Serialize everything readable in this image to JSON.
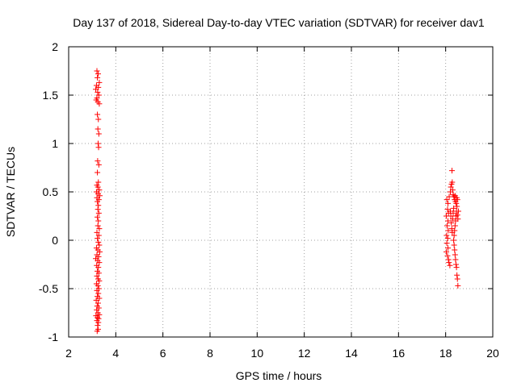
{
  "chart_data": {
    "type": "scatter",
    "title": "Day 137 of 2018, Sidereal Day-to-day VTEC variation (SDTVAR) for receiver dav1",
    "xlabel": "GPS time / hours",
    "ylabel": "SDTVAR / TECUs",
    "xlim": [
      2,
      20
    ],
    "ylim": [
      -1,
      2
    ],
    "xticks": [
      2,
      4,
      6,
      8,
      10,
      12,
      14,
      16,
      18,
      20
    ],
    "yticks": [
      -1,
      -0.5,
      0,
      0.5,
      1,
      1.5,
      2
    ],
    "ytick_labels": [
      "-1",
      "-0.5",
      "0",
      "0.5",
      "1",
      "1.5",
      "2"
    ],
    "grid": true,
    "marker": "+",
    "color": "#ff0000",
    "series": [
      {
        "name": "dav1",
        "points": [
          [
            3.2,
            1.75
          ],
          [
            3.25,
            1.72
          ],
          [
            3.22,
            1.68
          ],
          [
            3.3,
            1.63
          ],
          [
            3.18,
            1.6
          ],
          [
            3.26,
            1.58
          ],
          [
            3.15,
            1.56
          ],
          [
            3.23,
            1.53
          ],
          [
            3.28,
            1.5
          ],
          [
            3.2,
            1.47
          ],
          [
            3.17,
            1.45
          ],
          [
            3.24,
            1.43
          ],
          [
            3.3,
            1.41
          ],
          [
            3.22,
            1.3
          ],
          [
            3.26,
            1.25
          ],
          [
            3.24,
            1.15
          ],
          [
            3.28,
            1.1
          ],
          [
            3.25,
            1.0
          ],
          [
            3.27,
            0.96
          ],
          [
            3.23,
            0.82
          ],
          [
            3.28,
            0.78
          ],
          [
            3.22,
            0.7
          ],
          [
            3.26,
            0.6
          ],
          [
            3.2,
            0.57
          ],
          [
            3.24,
            0.55
          ],
          [
            3.3,
            0.52
          ],
          [
            3.18,
            0.5
          ],
          [
            3.25,
            0.48
          ],
          [
            3.32,
            0.46
          ],
          [
            3.2,
            0.44
          ],
          [
            3.28,
            0.42
          ],
          [
            3.22,
            0.4
          ],
          [
            3.26,
            0.36
          ],
          [
            3.24,
            0.32
          ],
          [
            3.28,
            0.28
          ],
          [
            3.22,
            0.24
          ],
          [
            3.26,
            0.2
          ],
          [
            3.24,
            0.15
          ],
          [
            3.3,
            0.12
          ],
          [
            3.2,
            0.08
          ],
          [
            3.28,
            0.05
          ],
          [
            3.22,
            0.02
          ],
          [
            3.26,
            -0.02
          ],
          [
            3.3,
            -0.05
          ],
          [
            3.18,
            -0.08
          ],
          [
            3.24,
            -0.1
          ],
          [
            3.32,
            -0.12
          ],
          [
            3.2,
            -0.15
          ],
          [
            3.27,
            -0.17
          ],
          [
            3.15,
            -0.19
          ],
          [
            3.23,
            -0.21
          ],
          [
            3.3,
            -0.23
          ],
          [
            3.19,
            -0.26
          ],
          [
            3.26,
            -0.28
          ],
          [
            3.22,
            -0.32
          ],
          [
            3.28,
            -0.34
          ],
          [
            3.2,
            -0.37
          ],
          [
            3.25,
            -0.4
          ],
          [
            3.3,
            -0.42
          ],
          [
            3.18,
            -0.45
          ],
          [
            3.24,
            -0.47
          ],
          [
            3.28,
            -0.5
          ],
          [
            3.2,
            -0.52
          ],
          [
            3.26,
            -0.55
          ],
          [
            3.22,
            -0.58
          ],
          [
            3.3,
            -0.6
          ],
          [
            3.17,
            -0.62
          ],
          [
            3.25,
            -0.65
          ],
          [
            3.21,
            -0.68
          ],
          [
            3.28,
            -0.7
          ],
          [
            3.19,
            -0.72
          ],
          [
            3.24,
            -0.75
          ],
          [
            3.3,
            -0.77
          ],
          [
            3.16,
            -0.78
          ],
          [
            3.22,
            -0.8
          ],
          [
            3.27,
            -0.81
          ],
          [
            3.2,
            -0.83
          ],
          [
            3.26,
            -0.85
          ],
          [
            3.23,
            -0.88
          ],
          [
            3.25,
            -0.92
          ],
          [
            3.21,
            -0.94
          ],
          [
            18.05,
            0.42
          ],
          [
            18.1,
            0.38
          ],
          [
            18.08,
            0.32
          ],
          [
            18.12,
            0.28
          ],
          [
            18.03,
            0.25
          ],
          [
            18.1,
            0.2
          ],
          [
            18.06,
            0.15
          ],
          [
            18.11,
            0.1
          ],
          [
            18.04,
            0.05
          ],
          [
            18.09,
            0.02
          ],
          [
            18.05,
            -0.03
          ],
          [
            18.1,
            -0.08
          ],
          [
            18.03,
            -0.12
          ],
          [
            18.08,
            -0.16
          ],
          [
            18.12,
            -0.2
          ],
          [
            18.14,
            -0.23
          ],
          [
            18.18,
            -0.26
          ],
          [
            18.15,
            0.45
          ],
          [
            18.2,
            0.5
          ],
          [
            18.22,
            0.55
          ],
          [
            18.25,
            0.58
          ],
          [
            18.28,
            0.6
          ],
          [
            18.27,
            0.72
          ],
          [
            18.3,
            0.52
          ],
          [
            18.32,
            0.47
          ],
          [
            18.35,
            0.45
          ],
          [
            18.38,
            0.42
          ],
          [
            18.4,
            0.46
          ],
          [
            18.42,
            0.4
          ],
          [
            18.45,
            0.38
          ],
          [
            18.48,
            0.35
          ],
          [
            18.46,
            0.3
          ],
          [
            18.44,
            0.25
          ],
          [
            18.42,
            0.2
          ],
          [
            18.4,
            0.15
          ],
          [
            18.38,
            0.1
          ],
          [
            18.36,
            0.05
          ],
          [
            18.34,
            0.0
          ],
          [
            18.36,
            -0.05
          ],
          [
            18.38,
            -0.1
          ],
          [
            18.4,
            -0.15
          ],
          [
            18.42,
            -0.2
          ],
          [
            18.44,
            -0.25
          ],
          [
            18.46,
            -0.28
          ],
          [
            18.48,
            -0.36
          ],
          [
            18.5,
            -0.4
          ],
          [
            18.52,
            -0.47
          ],
          [
            18.2,
            0.3
          ],
          [
            18.22,
            0.25
          ],
          [
            18.24,
            0.18
          ],
          [
            18.26,
            0.12
          ],
          [
            18.28,
            0.08
          ],
          [
            18.3,
            0.22
          ],
          [
            18.32,
            0.28
          ],
          [
            18.34,
            0.33
          ],
          [
            18.5,
            0.26
          ],
          [
            18.52,
            0.22
          ],
          [
            18.54,
            0.3
          ],
          [
            18.5,
            0.42
          ],
          [
            18.47,
            0.44
          ]
        ]
      }
    ]
  }
}
